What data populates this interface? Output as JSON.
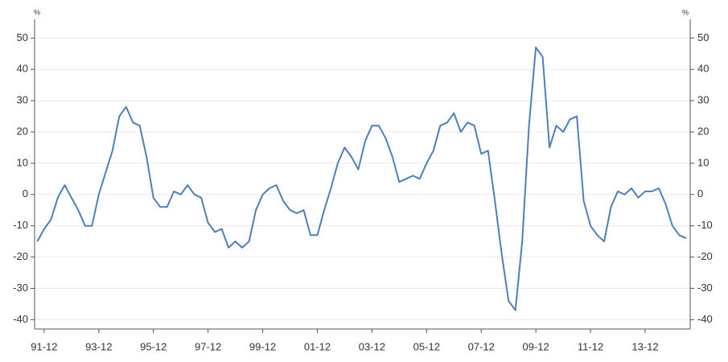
{
  "chart_data": {
    "type": "line",
    "y_label": "%",
    "y2_label": "%",
    "categories": [
      null,
      "91-12",
      null,
      null,
      null,
      null,
      null,
      null,
      null,
      "93-12",
      null,
      null,
      null,
      null,
      null,
      null,
      null,
      "95-12",
      null,
      null,
      null,
      null,
      null,
      null,
      null,
      "97-12",
      null,
      null,
      null,
      null,
      null,
      null,
      null,
      "99-12",
      null,
      null,
      null,
      null,
      null,
      null,
      null,
      "01-12",
      null,
      null,
      null,
      null,
      null,
      null,
      null,
      "03-12",
      null,
      null,
      null,
      null,
      null,
      null,
      null,
      "05-12",
      null,
      null,
      null,
      null,
      null,
      null,
      null,
      "07-12",
      null,
      null,
      null,
      null,
      null,
      null,
      null,
      "09-12",
      null,
      null,
      null,
      null,
      null,
      null,
      null,
      "11-12",
      null,
      null,
      null,
      null,
      null,
      null,
      null,
      "13-12",
      null,
      null,
      null,
      null,
      null,
      null
    ],
    "series": [
      {
        "name": null,
        "color": "#4f7fb8",
        "values": [
          -15,
          -11,
          -8,
          -1,
          3,
          -1,
          -5,
          -10,
          -10,
          0,
          7,
          14,
          25,
          28,
          23,
          22,
          12,
          -1,
          -4,
          -4,
          1,
          0,
          3,
          0,
          -1,
          -9,
          -12,
          -11,
          -17,
          -15,
          -17,
          -15,
          -5,
          0,
          2,
          3,
          -2,
          -5,
          -6,
          -5,
          -13,
          -13,
          -5,
          2,
          10,
          15,
          12,
          8,
          17,
          22,
          22,
          18,
          12,
          4,
          5,
          6,
          5,
          10,
          14,
          22,
          23,
          26,
          20,
          23,
          22,
          13,
          14,
          -2,
          -19,
          -34,
          -37,
          -15,
          22,
          47,
          44,
          15,
          22,
          20,
          24,
          25,
          -2,
          -10,
          -13,
          -15,
          -4,
          1,
          0,
          2,
          -1,
          1,
          1,
          2,
          -3,
          -10,
          -13,
          -14
        ]
      }
    ],
    "ylim": [
      -43,
      56
    ],
    "yticks": [
      -40,
      -30,
      -20,
      -10,
      0,
      10,
      20,
      30,
      40,
      50
    ],
    "y2lim": [
      -43,
      56
    ],
    "y2ticks": [
      -40,
      -30,
      -20,
      -10,
      0,
      10,
      20,
      30,
      40,
      50
    ],
    "grid": true
  }
}
